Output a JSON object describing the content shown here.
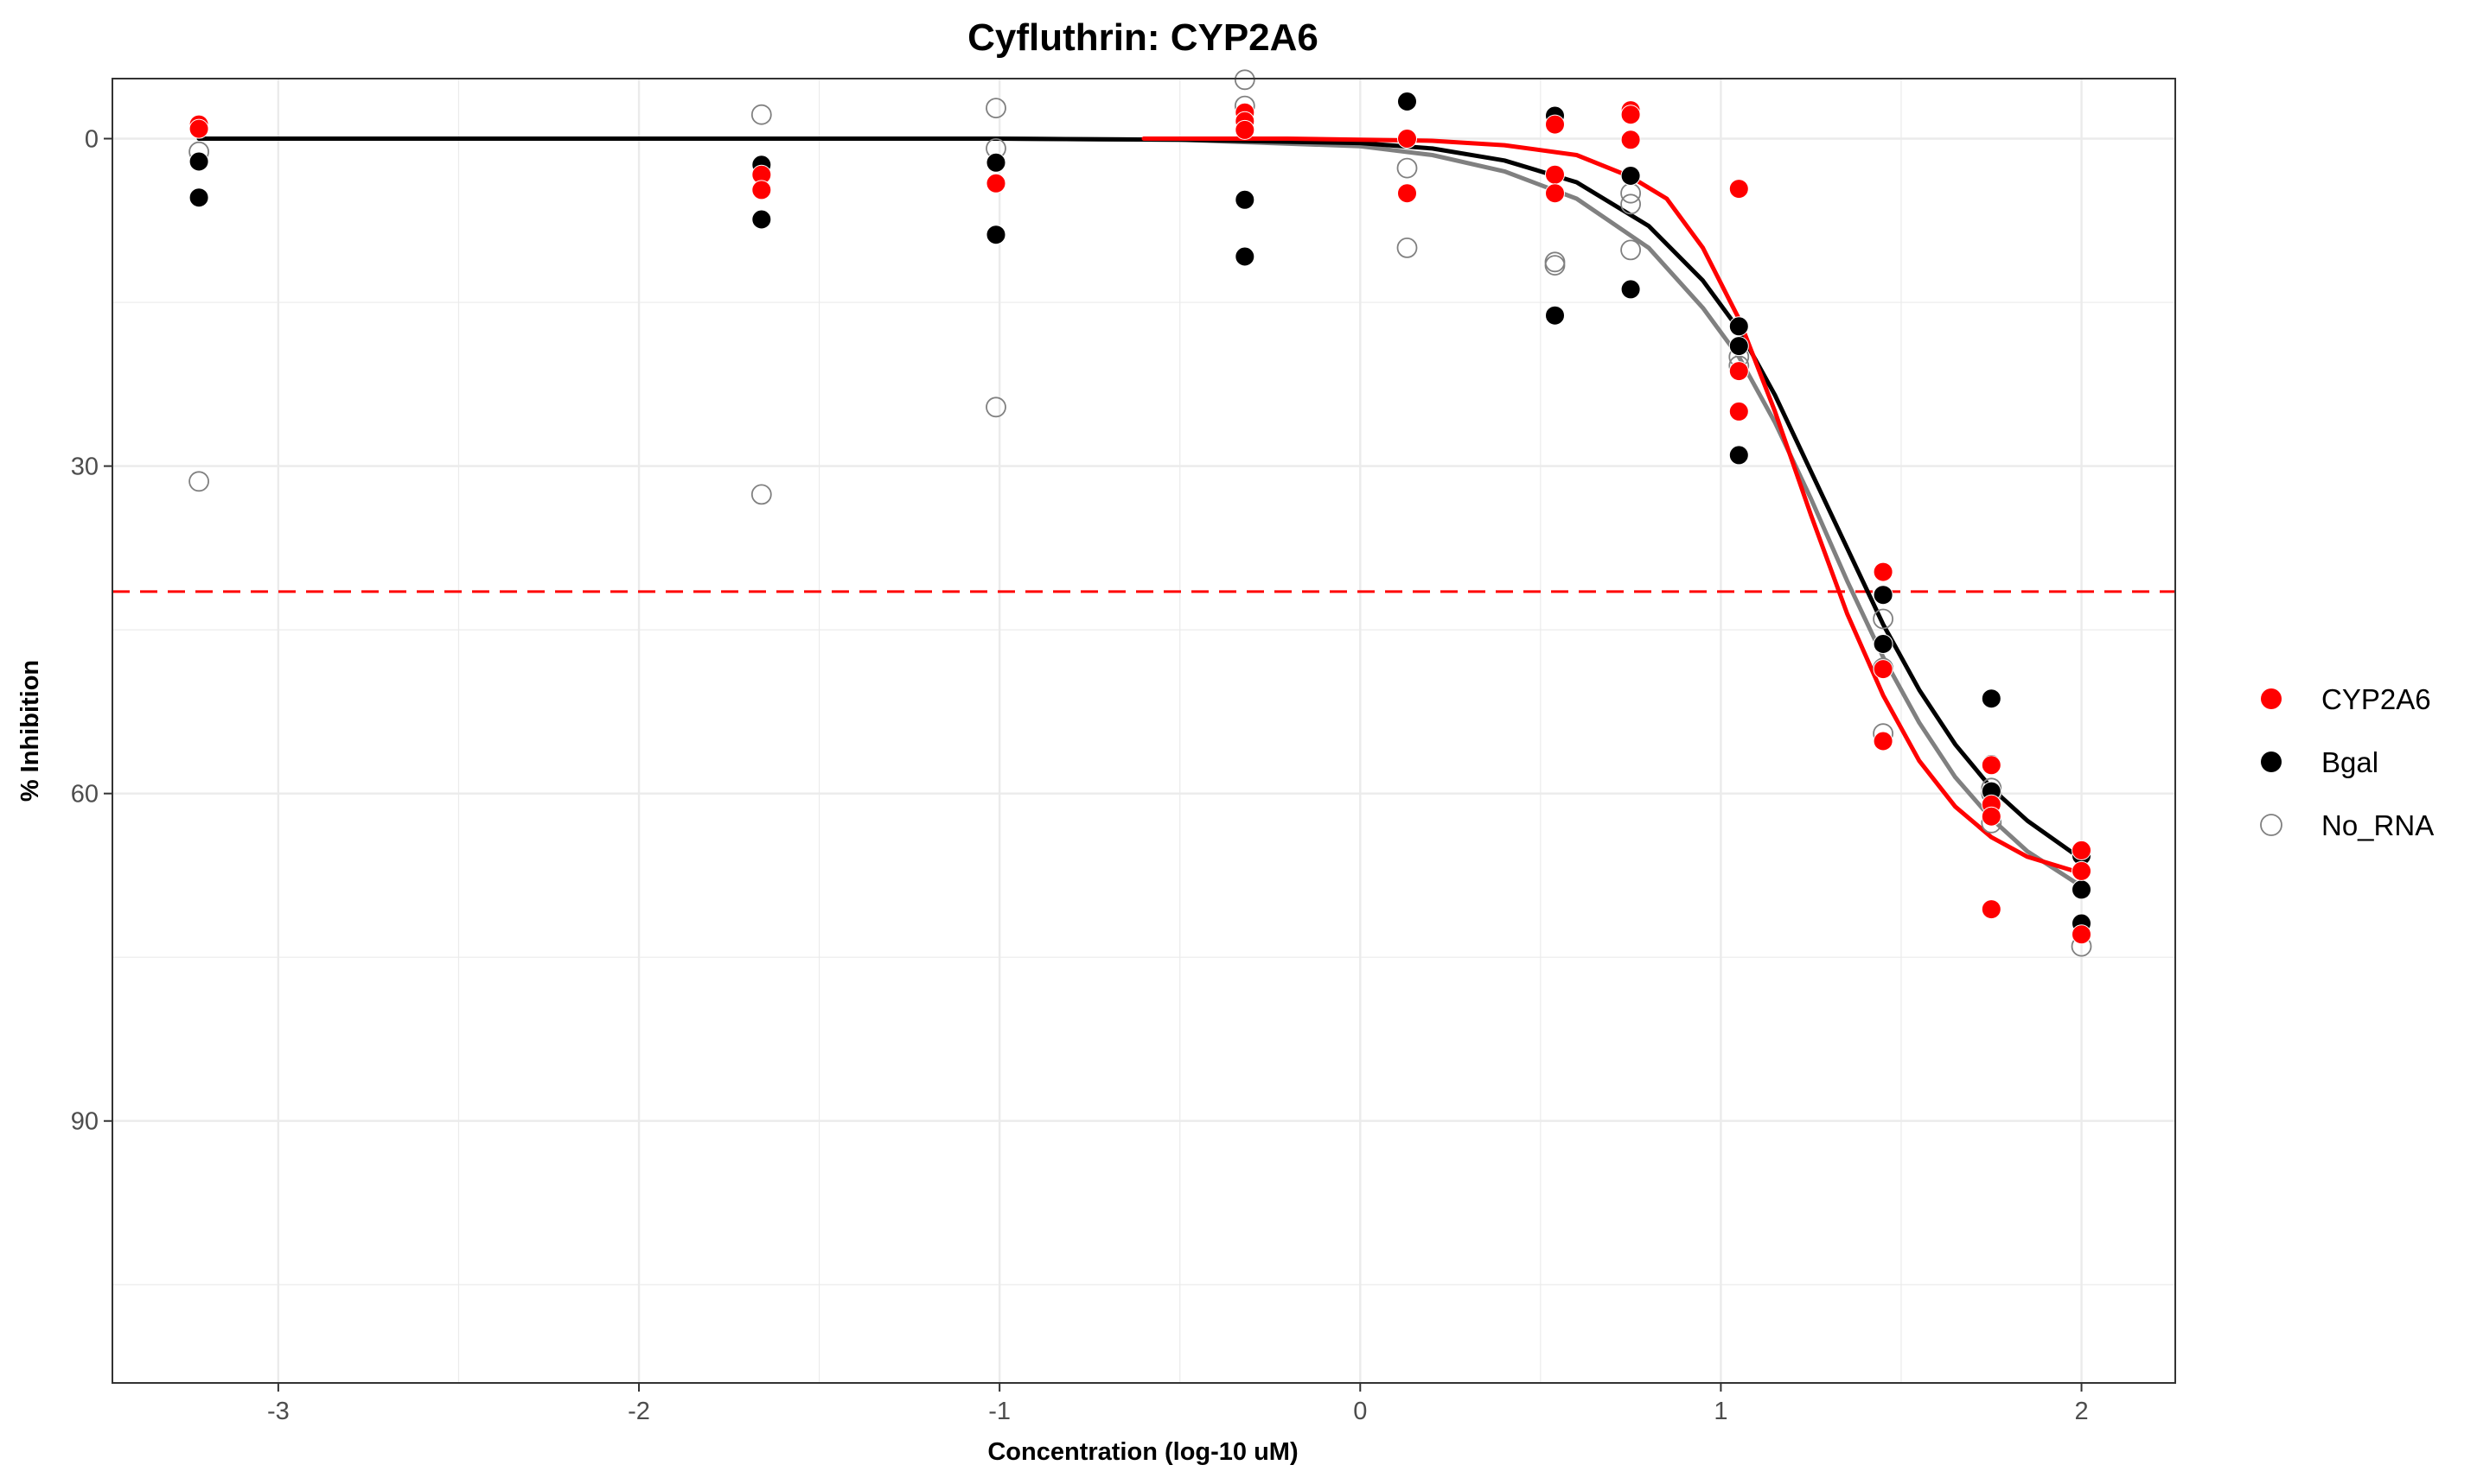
{
  "chart_data": {
    "type": "scatter",
    "title": "Cyfluthrin: CYP2A6",
    "xlabel": "Concentration (log-10 uM)",
    "ylabel": "% Inhibition",
    "xlim": [
      -3.46,
      2.26
    ],
    "ylim": [
      114,
      -5.5
    ],
    "y_reversed": true,
    "x_ticks": [
      -3,
      -2,
      -1,
      0,
      1,
      2
    ],
    "y_ticks": [
      0,
      30,
      60,
      90
    ],
    "grid": true,
    "legend_position": "right",
    "reference_line": {
      "y": 41.5,
      "color": "#FF0000",
      "style": "dashed"
    },
    "series": [
      {
        "name": "CYP2A6",
        "color": "#FF0000",
        "marker": "filled",
        "points": [
          [
            -3.22,
            -1.3
          ],
          [
            -3.22,
            -0.9
          ],
          [
            -1.66,
            3.3
          ],
          [
            -1.66,
            4.7
          ],
          [
            -1.01,
            4.1
          ],
          [
            -0.32,
            -2.4
          ],
          [
            -0.32,
            -1.6
          ],
          [
            -0.32,
            -0.8
          ],
          [
            0.13,
            0.0
          ],
          [
            0.13,
            5.0
          ],
          [
            0.54,
            -1.3
          ],
          [
            0.54,
            3.3
          ],
          [
            0.54,
            5.0
          ],
          [
            0.75,
            -2.6
          ],
          [
            0.75,
            -2.2
          ],
          [
            0.75,
            0.1
          ],
          [
            1.05,
            4.6
          ],
          [
            1.05,
            21.3
          ],
          [
            1.05,
            25.0
          ],
          [
            1.45,
            39.7
          ],
          [
            1.45,
            48.6
          ],
          [
            1.45,
            55.2
          ],
          [
            1.75,
            57.4
          ],
          [
            1.75,
            61.0
          ],
          [
            1.75,
            62.1
          ],
          [
            1.75,
            70.6
          ],
          [
            2.0,
            65.2
          ],
          [
            2.0,
            67.1
          ],
          [
            2.0,
            72.9
          ]
        ],
        "curve": [
          [
            -0.6,
            0.0
          ],
          [
            -0.2,
            0.0
          ],
          [
            0.0,
            0.1
          ],
          [
            0.2,
            0.2
          ],
          [
            0.4,
            0.6
          ],
          [
            0.6,
            1.5
          ],
          [
            0.75,
            3.5
          ],
          [
            0.85,
            5.5
          ],
          [
            0.95,
            10.0
          ],
          [
            1.05,
            16.5
          ],
          [
            1.15,
            25.0
          ],
          [
            1.25,
            34.5
          ],
          [
            1.35,
            43.5
          ],
          [
            1.45,
            51.0
          ],
          [
            1.55,
            57.0
          ],
          [
            1.65,
            61.2
          ],
          [
            1.75,
            64.0
          ],
          [
            1.85,
            65.8
          ],
          [
            2.0,
            67.3
          ]
        ]
      },
      {
        "name": "Bgal",
        "color": "#000000",
        "marker": "filled",
        "points": [
          [
            -3.22,
            2.1
          ],
          [
            -3.22,
            5.4
          ],
          [
            -1.66,
            2.4
          ],
          [
            -1.66,
            7.4
          ],
          [
            -1.01,
            2.2
          ],
          [
            -1.01,
            8.8
          ],
          [
            -0.32,
            5.6
          ],
          [
            -0.32,
            10.8
          ],
          [
            0.13,
            -3.4
          ],
          [
            0.54,
            -2.1
          ],
          [
            0.54,
            16.2
          ],
          [
            0.75,
            3.4
          ],
          [
            0.75,
            13.8
          ],
          [
            1.05,
            17.2
          ],
          [
            1.05,
            19.0
          ],
          [
            1.05,
            29.0
          ],
          [
            1.45,
            41.8
          ],
          [
            1.45,
            46.3
          ],
          [
            1.75,
            51.3
          ],
          [
            1.75,
            57.3
          ],
          [
            1.75,
            59.8
          ],
          [
            2.0,
            65.7
          ],
          [
            2.0,
            68.8
          ],
          [
            2.0,
            71.9
          ]
        ],
        "curve": [
          [
            -3.22,
            0.0
          ],
          [
            -1.0,
            0.0
          ],
          [
            -0.5,
            0.1
          ],
          [
            0.0,
            0.4
          ],
          [
            0.2,
            0.9
          ],
          [
            0.4,
            2.0
          ],
          [
            0.6,
            4.0
          ],
          [
            0.8,
            8.0
          ],
          [
            0.95,
            13.0
          ],
          [
            1.05,
            17.5
          ],
          [
            1.15,
            23.5
          ],
          [
            1.25,
            30.5
          ],
          [
            1.35,
            37.5
          ],
          [
            1.45,
            44.5
          ],
          [
            1.55,
            50.5
          ],
          [
            1.65,
            55.5
          ],
          [
            1.75,
            59.5
          ],
          [
            1.85,
            62.5
          ],
          [
            2.0,
            66.0
          ]
        ]
      },
      {
        "name": "No_RNA",
        "color": "#808080",
        "marker": "open",
        "points": [
          [
            -3.22,
            1.2
          ],
          [
            -3.22,
            31.4
          ],
          [
            -1.66,
            -2.2
          ],
          [
            -1.66,
            32.6
          ],
          [
            -1.01,
            -2.8
          ],
          [
            -1.01,
            0.9
          ],
          [
            -1.01,
            24.6
          ],
          [
            -0.32,
            -5.4
          ],
          [
            -0.32,
            -3.0
          ],
          [
            0.13,
            2.7
          ],
          [
            0.13,
            10.0
          ],
          [
            0.54,
            11.3
          ],
          [
            0.54,
            11.6
          ],
          [
            0.75,
            5.0
          ],
          [
            0.75,
            6.0
          ],
          [
            0.75,
            10.2
          ],
          [
            1.05,
            20.0
          ],
          [
            1.05,
            20.8
          ],
          [
            1.45,
            44.0
          ],
          [
            1.45,
            48.5
          ],
          [
            1.45,
            54.5
          ],
          [
            1.75,
            59.5
          ],
          [
            1.75,
            60.0
          ],
          [
            1.75,
            62.7
          ],
          [
            2.0,
            74.0
          ]
        ],
        "curve": [
          [
            -3.22,
            0.0
          ],
          [
            -1.0,
            0.0
          ],
          [
            -0.5,
            0.1
          ],
          [
            0.0,
            0.7
          ],
          [
            0.2,
            1.5
          ],
          [
            0.4,
            3.0
          ],
          [
            0.6,
            5.5
          ],
          [
            0.8,
            10.0
          ],
          [
            0.95,
            15.5
          ],
          [
            1.05,
            20.0
          ],
          [
            1.15,
            26.0
          ],
          [
            1.25,
            33.0
          ],
          [
            1.35,
            40.5
          ],
          [
            1.45,
            47.5
          ],
          [
            1.55,
            53.5
          ],
          [
            1.65,
            58.5
          ],
          [
            1.75,
            62.3
          ],
          [
            1.85,
            65.3
          ],
          [
            2.0,
            68.5
          ]
        ]
      }
    ]
  }
}
